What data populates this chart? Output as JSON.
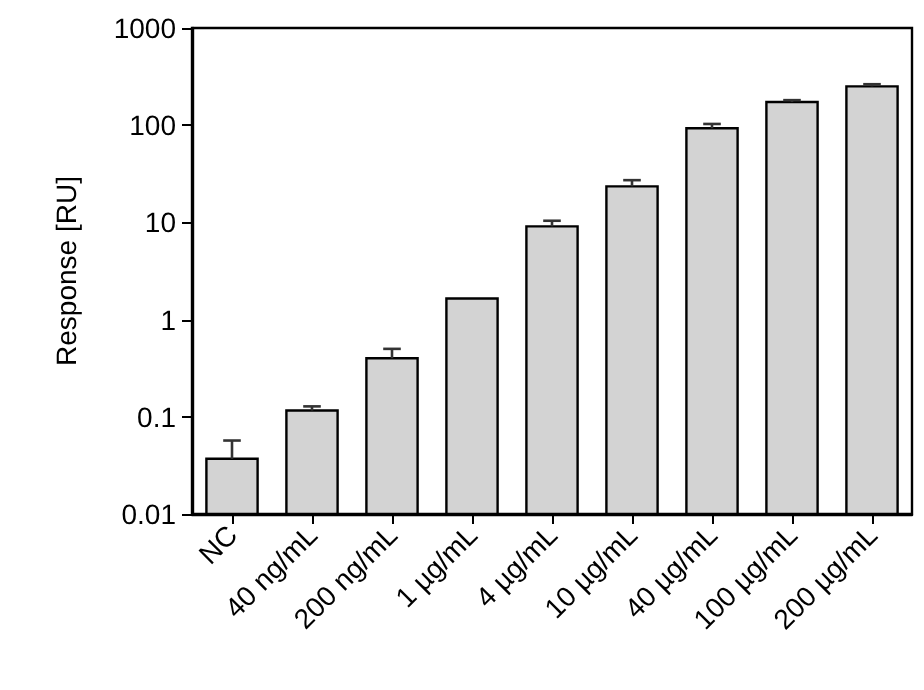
{
  "chart_data": {
    "type": "bar",
    "ylabel": "Response [RU]",
    "categories": [
      "NC",
      "40 ng/mL",
      "200 ng/mL",
      "1 µg/mL",
      "4 µg/mL",
      "10 µg/mL",
      "40 µg/mL",
      "100 µg/mL",
      "200 µg/mL"
    ],
    "values": [
      0.037,
      0.116,
      0.4,
      1.65,
      9.1,
      23.5,
      93,
      173,
      251
    ],
    "errors": [
      [
        0.037,
        0.057
      ],
      [
        0.116,
        0.128
      ],
      [
        0.4,
        0.5
      ],
      null,
      [
        9.1,
        10.4
      ],
      [
        23.5,
        27.2
      ],
      [
        93,
        103
      ],
      [
        173,
        181
      ],
      [
        251,
        264
      ]
    ],
    "color": "#d3d3d3",
    "log": "y",
    "ylim": [
      0.01,
      1000
    ],
    "yticks": [
      0.01,
      0.1,
      1,
      10,
      100,
      1000
    ],
    "grid": false
  }
}
